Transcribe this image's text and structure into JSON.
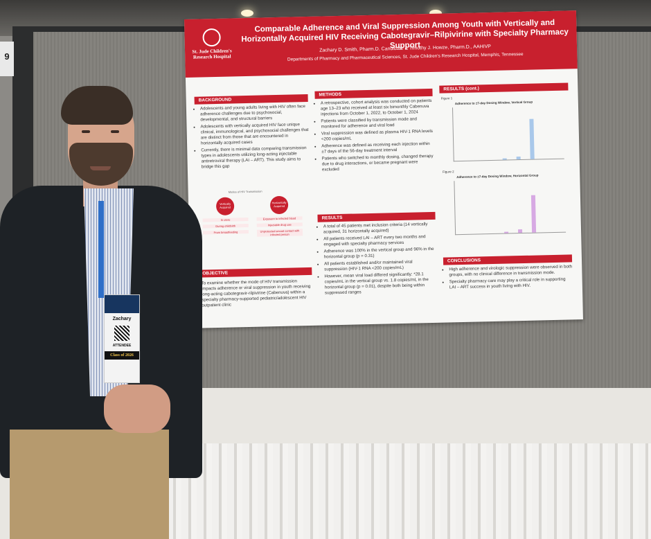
{
  "poster": {
    "logo_line1": "St. Jude Children's",
    "logo_line2": "Research Hospital",
    "title": "Comparable Adherence and Viral Suppression Among Youth with Vertically and Horizontally Acquired HIV Receiving Cabotegravir–Rilpivirine with Specialty Pharmacy Support",
    "authors": "Zachary D. Smith, Pharm.D. Candidate & Timothy J. Howze, Pharm.D., AAHIVP",
    "department": "Departments of Pharmacy and Pharmaceutical Sciences, St. Jude Children's Research Hospital, Memphis, Tennessee",
    "background": {
      "heading": "BACKGROUND",
      "items": [
        "Adolescents and young adults living with HIV often face adherence challenges due to psychosocial, developmental, and structural barriers",
        "Adolescents with vertically acquired HIV face unique clinical, immunological, and psychosocial challenges that are distinct from those that are encountered in horizontally acquired cases",
        "Currently, there is minimal data comparing transmission types in adolescents utilizing long-acting injectable antiretroviral therapy (LAI – ART). This study aims to bridge this gap"
      ]
    },
    "diagram": {
      "caption": "Modes of HIV Transmission",
      "left_bubble": "Vertically Acquired",
      "left_items": [
        "In utero",
        "During childbirth",
        "From breastfeeding"
      ],
      "right_bubble": "Horizontally Acquired",
      "right_items": [
        "Exposure to infected blood",
        "Injectable drug use",
        "Unprotected sexual contact with infected person"
      ]
    },
    "objective": {
      "heading": "OBJECTIVE",
      "text": "To examine whether the mode of HIV transmission impacts adherence or viral suppression in youth receiving long-acting cabotegravir-rilpivirine (Cabenuva) within a specialty pharmacy-supported pediatric/adolescent HIV outpatient clinic"
    },
    "methods": {
      "heading": "METHODS",
      "items": [
        "A retrospective, cohort analysis was conducted on patients age 13–23 who received at least six bimonthly Cabenuva injections from October 1, 2022, to October 1, 2024",
        "Patients were classified by transmission mode and monitored for adherence and viral load",
        "Viral suppression was defined as plasma HIV-1 RNA levels <200 copies/mL",
        "Adherence was defined as receiving each injection within ±7 days of the 56-day treatment interval",
        "Patients who switched to monthly dosing, changed therapy due to drug interactions, or became pregnant were excluded"
      ]
    },
    "results": {
      "heading": "RESULTS",
      "items": [
        "A total of 45 patients met inclusion criteria (14 vertically acquired, 31 horizontally acquired)",
        "All patients received LAI – ART every two months and engaged with specialty pharmacy services",
        "Adherence was 100% in the vertical group and 96% in the horizontal group (p = 0.31)",
        "All patients established and/or maintained viral suppression (HIV-1 RNA <200 copies/mL)",
        "However, mean viral load differed significantly: *28.1 copies/mL in the vertical group vs. 1.8 copies/mL in the horizontal group (p = 0.01), despite both being within suppressed ranges"
      ]
    },
    "results_cont": {
      "heading": "RESULTS (cont.)",
      "figure1_label": "Figure 1",
      "figure1_title": "Adherence to ±7-day Dosing Window, Vertical Group",
      "figure2_label": "Figure 2",
      "figure2_title": "Adherence to ±7-day Dosing Window, Horizontal Group"
    },
    "conclusions": {
      "heading": "CONCLUSIONS",
      "items": [
        "High adherence and virologic suppression were observed in both groups, with no clinical difference in transmission mode.",
        "Specialty pharmacy care may play a critical role in supporting LAI – ART success in youth living with HIV."
      ]
    }
  },
  "badge": {
    "name": "Zachary",
    "role": "ATTENDEE",
    "class_label": "Class of 2026"
  },
  "booth": {
    "edge_number": "9"
  },
  "colors": {
    "poster_red": "#c8202e",
    "figure1_bar": "#a9c8ea",
    "figure2_bar": "#d7a9e3"
  }
}
